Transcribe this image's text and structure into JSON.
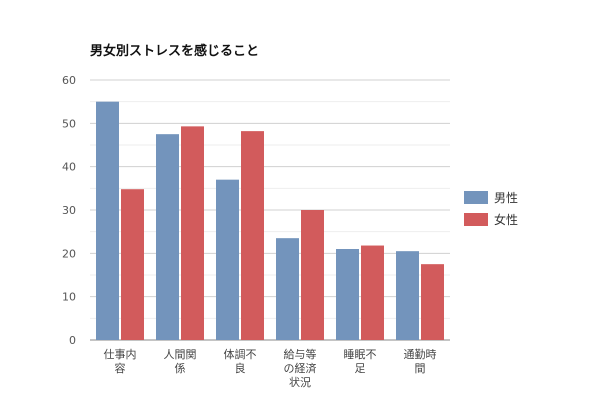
{
  "chart_data": {
    "type": "bar",
    "title": "男女別ストレスを感じること",
    "categories": [
      [
        "仕事内",
        "容"
      ],
      [
        "人間関",
        "係"
      ],
      [
        "体調不",
        "良"
      ],
      [
        "給与等",
        "の経済",
        "状況"
      ],
      [
        "睡眠不",
        "足"
      ],
      [
        "通勤時",
        "間"
      ]
    ],
    "series": [
      {
        "name": "男性",
        "color": "#7394bc",
        "values": [
          55.0,
          47.5,
          37.0,
          23.5,
          21.0,
          20.5
        ]
      },
      {
        "name": "女性",
        "color": "#d25b5c",
        "values": [
          34.8,
          49.3,
          48.2,
          30.0,
          21.8,
          17.5
        ]
      }
    ],
    "ylim": [
      0,
      60
    ],
    "yticks": [
      0,
      10,
      20,
      30,
      40,
      50,
      60
    ],
    "grid": true,
    "legend": "right"
  }
}
